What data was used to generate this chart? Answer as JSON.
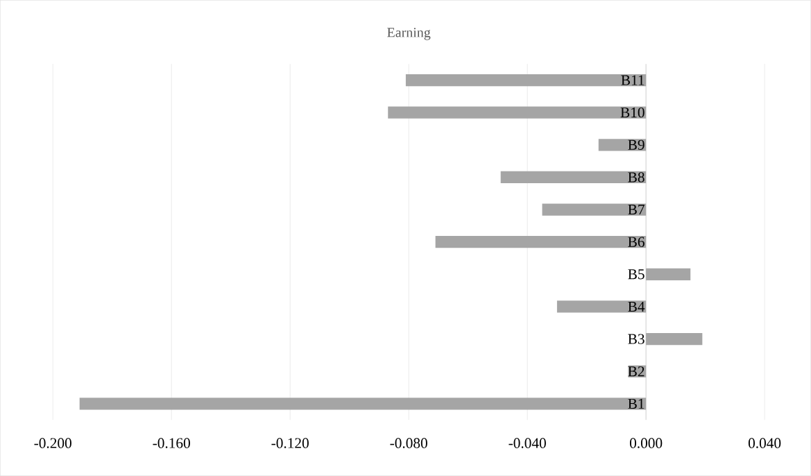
{
  "chart_data": {
    "type": "bar",
    "orientation": "horizontal",
    "title": "Earning",
    "categories": [
      "B11",
      "B10",
      "B9",
      "B8",
      "B7",
      "B6",
      "B5",
      "B4",
      "B3",
      "B2",
      "B1"
    ],
    "values": [
      -0.081,
      -0.087,
      -0.016,
      -0.049,
      -0.035,
      -0.071,
      0.015,
      -0.03,
      0.019,
      -0.006,
      -0.191
    ],
    "color": "#a5a5a5",
    "xlim": [
      -0.2,
      0.04
    ],
    "xticks": [
      {
        "value": -0.2,
        "label": "-0.200"
      },
      {
        "value": -0.16,
        "label": "-0.160"
      },
      {
        "value": -0.12,
        "label": "-0.120"
      },
      {
        "value": -0.08,
        "label": "-0.080"
      },
      {
        "value": -0.04,
        "label": "-0.040"
      },
      {
        "value": 0,
        "label": "0.000"
      },
      {
        "value": 0.04,
        "label": "0.040"
      }
    ],
    "grid": "x"
  }
}
